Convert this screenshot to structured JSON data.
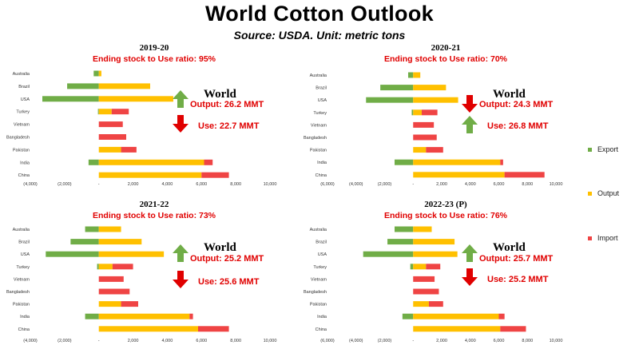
{
  "title": "World Cotton Outlook",
  "subtitle": "Source: USDA. Unit: metric tons",
  "legend": [
    {
      "name": "Export",
      "color": "#70AD47"
    },
    {
      "name": "Output",
      "color": "#FFC000"
    },
    {
      "name": "Import",
      "color": "#EF4444"
    }
  ],
  "colors": {
    "up_arrow": "#70AD47",
    "down_arrow": "#E00000",
    "ratio_text": "#E00000",
    "output_text": "#E00000",
    "use_text": "#E00000"
  },
  "chart_data": [
    {
      "type": "bar",
      "title": "2019-20",
      "subtitle": "Ending stock to Use ratio:  95%",
      "world_label": "World",
      "output_label": "Output: 26.2 MMT",
      "use_label": "Use: 22.7 MMT",
      "output_trend": "up",
      "use_trend": "down",
      "categories": [
        "Australia",
        "Brazil",
        "USA",
        "Turkey",
        "Vietnam",
        "Bangladesh",
        "Pakistan",
        "India",
        "China"
      ],
      "series": [
        {
          "name": "Export",
          "values": [
            -300,
            -1850,
            -3300,
            -50,
            0,
            0,
            0,
            -600,
            0
          ]
        },
        {
          "name": "Output",
          "values": [
            150,
            3000,
            4350,
            750,
            0,
            0,
            1300,
            6150,
            6000
          ]
        },
        {
          "name": "Import",
          "values": [
            0,
            0,
            0,
            1000,
            1400,
            1600,
            900,
            500,
            1600
          ]
        }
      ],
      "x_ticks": [
        "(4,000)",
        "(2,000)",
        "-",
        "2,000",
        "4,000",
        "6,000",
        "8,000",
        "10,000"
      ],
      "xlim": [
        -4000,
        10000
      ]
    },
    {
      "type": "bar",
      "title": "2020-21",
      "subtitle": "Ending stock to Use ratio:  70%",
      "world_label": "World",
      "output_label": "Output: 24.3 MMT",
      "use_label": "Use: 26.8 MMT",
      "output_trend": "down",
      "use_trend": "up",
      "categories": [
        "Australia",
        "Brazil",
        "USA",
        "Turkey",
        "Vietnam",
        "Bangladesh",
        "Pakistan",
        "India",
        "China"
      ],
      "series": [
        {
          "name": "Export",
          "values": [
            -350,
            -2300,
            -3300,
            -100,
            0,
            0,
            0,
            -1300,
            0
          ]
        },
        {
          "name": "Output",
          "values": [
            500,
            2300,
            3150,
            600,
            0,
            0,
            900,
            6100,
            6400
          ]
        },
        {
          "name": "Import",
          "values": [
            0,
            0,
            0,
            1100,
            1450,
            1650,
            1200,
            200,
            2800
          ]
        }
      ],
      "x_ticks": [
        "(6,000)",
        "(4,000)",
        "(2,000)",
        "-",
        "2,000",
        "4,000",
        "6,000",
        "8,000",
        "10,000"
      ],
      "xlim": [
        -6000,
        10000
      ]
    },
    {
      "type": "bar",
      "title": "2021-22",
      "subtitle": "Ending stock to Use ratio:  73%",
      "world_label": "World",
      "output_label": "Output: 25.2 MMT",
      "use_label": "Use: 25.6 MMT",
      "output_trend": "up",
      "use_trend": "down",
      "categories": [
        "Australia",
        "Brazil",
        "USA",
        "Turkey",
        "Vietnam",
        "Bangladesh",
        "Pakistan",
        "India",
        "China"
      ],
      "series": [
        {
          "name": "Export",
          "values": [
            -800,
            -1650,
            -3100,
            -100,
            0,
            0,
            0,
            -800,
            0
          ]
        },
        {
          "name": "Output",
          "values": [
            1300,
            2500,
            3800,
            800,
            0,
            0,
            1300,
            5300,
            5800
          ]
        },
        {
          "name": "Import",
          "values": [
            0,
            0,
            0,
            1200,
            1450,
            1800,
            1000,
            200,
            1800
          ]
        }
      ],
      "x_ticks": [
        "(4,000)",
        "(2,000)",
        "-",
        "2,000",
        "4,000",
        "6,000",
        "8,000",
        "10,000"
      ],
      "xlim": [
        -4000,
        10000
      ]
    },
    {
      "type": "bar",
      "title": "2022-23 (P)",
      "subtitle": "Ending stock to Use ratio:  76%",
      "world_label": "World",
      "output_label": "Output: 25.7 MMT",
      "use_label": "Use: 25.2 MMT",
      "output_trend": "up",
      "use_trend": "down",
      "categories": [
        "Australia",
        "Brazil",
        "USA",
        "Turkey",
        "Vietnam",
        "Bangladesh",
        "Pakistan",
        "India",
        "China"
      ],
      "series": [
        {
          "name": "Export",
          "values": [
            -1300,
            -1800,
            -3500,
            -200,
            0,
            0,
            0,
            -750,
            0
          ]
        },
        {
          "name": "Output",
          "values": [
            1300,
            2900,
            3100,
            900,
            0,
            0,
            1100,
            6000,
            6100
          ]
        },
        {
          "name": "Import",
          "values": [
            0,
            0,
            0,
            1000,
            1500,
            1800,
            1000,
            400,
            1800
          ]
        }
      ],
      "x_ticks": [
        "(6,000)",
        "(4,000)",
        "(2,000)",
        "-",
        "2,000",
        "4,000",
        "6,000",
        "8,000",
        "10,000"
      ],
      "xlim": [
        -6000,
        10000
      ]
    }
  ]
}
